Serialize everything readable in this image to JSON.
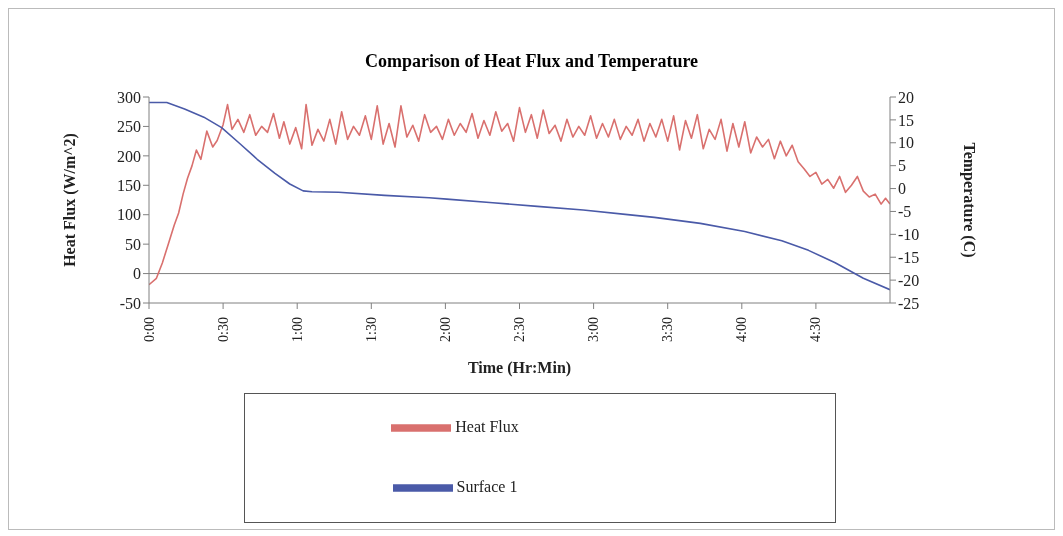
{
  "chart_data": {
    "type": "line",
    "title": "Comparison of Heat Flux and Temperature",
    "xlabel": "Time (Hr:Min)",
    "ylabel": "Heat Flux (W/m^2)",
    "y2label": "Temperature (C)",
    "xlim": [
      0,
      5
    ],
    "xticks": [
      {
        "value": 0,
        "label": "0:00"
      },
      {
        "value": 0.5,
        "label": "0:30"
      },
      {
        "value": 1,
        "label": "1:00"
      },
      {
        "value": 1.5,
        "label": "1:30"
      },
      {
        "value": 2,
        "label": "2:00"
      },
      {
        "value": 2.5,
        "label": "2:30"
      },
      {
        "value": 3,
        "label": "3:00"
      },
      {
        "value": 3.5,
        "label": "3:30"
      },
      {
        "value": 4,
        "label": "4:00"
      },
      {
        "value": 4.5,
        "label": "4:30"
      }
    ],
    "ylim": [
      -50,
      300
    ],
    "yticks": [
      -50,
      0,
      50,
      100,
      150,
      200,
      250,
      300
    ],
    "y2lim": [
      -25,
      20
    ],
    "y2ticks": [
      -25,
      -20,
      -15,
      -10,
      -5,
      0,
      5,
      10,
      15,
      20
    ],
    "legend": "bottom",
    "marker": "none",
    "grid": false,
    "ref_lines": [
      {
        "axis": "y",
        "value": 0,
        "color": "#808080"
      }
    ],
    "series": [
      {
        "name": "Heat Flux",
        "color": "#d9706e",
        "x": [
          0,
          0.05,
          0.09,
          0.13,
          0.17,
          0.2,
          0.23,
          0.26,
          0.29,
          0.32,
          0.35,
          0.39,
          0.43,
          0.46,
          0.5,
          0.53,
          0.56,
          0.6,
          0.64,
          0.68,
          0.72,
          0.76,
          0.8,
          0.84,
          0.88,
          0.91,
          0.95,
          0.99,
          1.03,
          1.06,
          1.1,
          1.14,
          1.18,
          1.22,
          1.26,
          1.3,
          1.34,
          1.38,
          1.42,
          1.46,
          1.5,
          1.54,
          1.58,
          1.62,
          1.66,
          1.7,
          1.74,
          1.78,
          1.82,
          1.86,
          1.9,
          1.94,
          1.98,
          2.02,
          2.06,
          2.1,
          2.14,
          2.18,
          2.22,
          2.26,
          2.3,
          2.34,
          2.38,
          2.42,
          2.46,
          2.5,
          2.54,
          2.58,
          2.62,
          2.66,
          2.7,
          2.74,
          2.78,
          2.82,
          2.86,
          2.9,
          2.94,
          2.98,
          3.02,
          3.06,
          3.1,
          3.14,
          3.18,
          3.22,
          3.26,
          3.3,
          3.34,
          3.38,
          3.42,
          3.46,
          3.5,
          3.54,
          3.58,
          3.62,
          3.66,
          3.7,
          3.74,
          3.78,
          3.82,
          3.86,
          3.9,
          3.94,
          3.98,
          4.02,
          4.06,
          4.1,
          4.14,
          4.18,
          4.22,
          4.26,
          4.3,
          4.34,
          4.38,
          4.42,
          4.46,
          4.5,
          4.54,
          4.58,
          4.62,
          4.66,
          4.7,
          4.74,
          4.78,
          4.82,
          4.86,
          4.9,
          4.94,
          4.97,
          5
        ],
        "values": [
          -19,
          -8,
          18,
          50,
          82,
          103,
          135,
          162,
          183,
          210,
          194,
          242,
          215,
          226,
          253,
          287,
          245,
          262,
          240,
          270,
          235,
          250,
          240,
          272,
          230,
          258,
          220,
          248,
          212,
          287,
          218,
          245,
          225,
          262,
          220,
          275,
          228,
          250,
          235,
          268,
          228,
          285,
          220,
          255,
          215,
          285,
          232,
          252,
          225,
          270,
          240,
          250,
          228,
          262,
          235,
          255,
          240,
          272,
          230,
          260,
          235,
          275,
          242,
          255,
          225,
          282,
          240,
          270,
          230,
          278,
          238,
          252,
          225,
          262,
          232,
          250,
          235,
          268,
          230,
          255,
          232,
          262,
          228,
          250,
          235,
          262,
          225,
          255,
          232,
          262,
          225,
          268,
          210,
          260,
          230,
          270,
          212,
          245,
          228,
          262,
          208,
          255,
          215,
          258,
          205,
          232,
          215,
          228,
          195,
          225,
          200,
          218,
          190,
          178,
          165,
          172,
          152,
          160,
          145,
          165,
          138,
          150,
          165,
          140,
          130,
          135,
          118,
          128,
          118
        ]
      },
      {
        "name": "Surface 1",
        "color": "#4a5aa8",
        "axis": "y2",
        "x": [
          0,
          0.12,
          0.24,
          0.37,
          0.49,
          0.61,
          0.73,
          0.85,
          0.95,
          1.04,
          1.1,
          1.28,
          1.59,
          1.89,
          2.01,
          2.32,
          2.62,
          2.93,
          3.23,
          3.41,
          3.72,
          4.02,
          4.27,
          4.45,
          4.63,
          4.82,
          5
        ],
        "values": [
          18.8,
          18.8,
          17.4,
          15.6,
          13.3,
          9.9,
          6.4,
          3.3,
          1,
          -0.5,
          -0.7,
          -0.8,
          -1.5,
          -2,
          -2.3,
          -3.1,
          -3.9,
          -4.7,
          -5.7,
          -6.3,
          -7.6,
          -9.4,
          -11.4,
          -13.5,
          -16.2,
          -19.6,
          -22.1
        ]
      }
    ]
  }
}
